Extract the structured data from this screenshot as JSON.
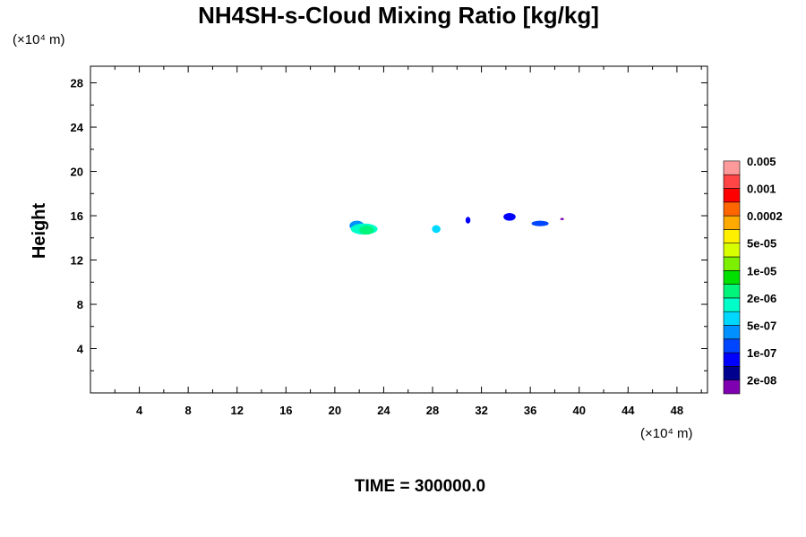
{
  "chart_data": {
    "type": "heatmap",
    "title": "NH4SH-s-Cloud Mixing Ratio [kg/kg]",
    "ylabel": "Height",
    "xlabel": "",
    "x_unit": "(×10⁴ m)",
    "y_unit": "(×10⁴ m)",
    "xlim": [
      0,
      50.5
    ],
    "ylim": [
      0,
      29.5
    ],
    "x_ticks": [
      4,
      8,
      12,
      16,
      20,
      24,
      28,
      32,
      36,
      40,
      44,
      48
    ],
    "y_ticks": [
      4,
      8,
      12,
      16,
      20,
      24,
      28
    ],
    "time_label": "TIME = 300000.0",
    "colorbar": {
      "colors": [
        "#7f00b0",
        "#00008f",
        "#0000ff",
        "#0045ff",
        "#0090ff",
        "#00d8ff",
        "#00ffc8",
        "#00f57a",
        "#00e000",
        "#7cf000",
        "#d8ff00",
        "#fff000",
        "#ffaa00",
        "#ff6600",
        "#ff0000",
        "#ff4545",
        "#ff9a9a"
      ],
      "labels": [
        "2e-08",
        "1e-07",
        "5e-07",
        "2e-06",
        "1e-05",
        "5e-05",
        "0.0002",
        "0.001",
        "0.005"
      ]
    },
    "features": [
      {
        "x": 21.8,
        "y": 15.1,
        "rx": 0.6,
        "ry": 0.45,
        "color": "#0090ff"
      },
      {
        "x": 22.4,
        "y": 14.8,
        "rx": 1.1,
        "ry": 0.5,
        "color": "#00ffc8"
      },
      {
        "x": 22.6,
        "y": 14.7,
        "rx": 0.6,
        "ry": 0.4,
        "color": "#00f57a"
      },
      {
        "x": 28.3,
        "y": 14.8,
        "rx": 0.35,
        "ry": 0.35,
        "color": "#00d8ff"
      },
      {
        "x": 30.9,
        "y": 15.6,
        "rx": 0.2,
        "ry": 0.3,
        "color": "#0000ff"
      },
      {
        "x": 34.3,
        "y": 15.9,
        "rx": 0.5,
        "ry": 0.35,
        "color": "#0000ff"
      },
      {
        "x": 36.8,
        "y": 15.3,
        "rx": 0.7,
        "ry": 0.25,
        "color": "#0045ff"
      },
      {
        "x": 38.6,
        "y": 15.7,
        "rx": 0.15,
        "ry": 0.1,
        "color": "#7f00b0"
      }
    ]
  }
}
